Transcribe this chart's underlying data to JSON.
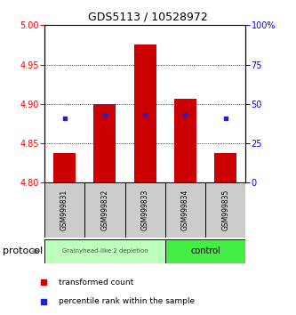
{
  "title": "GDS5113 / 10528972",
  "samples": [
    "GSM999831",
    "GSM999832",
    "GSM999833",
    "GSM999834",
    "GSM999835"
  ],
  "bar_bottom": 4.8,
  "bar_tops": [
    4.838,
    4.9,
    4.975,
    4.907,
    4.838
  ],
  "percentile_values": [
    4.882,
    4.886,
    4.886,
    4.886,
    4.882
  ],
  "ylim": [
    4.8,
    5.0
  ],
  "yticks_left": [
    4.8,
    4.85,
    4.9,
    4.95,
    5.0
  ],
  "yticks_right": [
    0,
    25,
    50,
    75,
    100
  ],
  "bar_color": "#cc0000",
  "blue_color": "#2222cc",
  "group1_label": "Grainyhead-like 2 depletion",
  "group2_label": "control",
  "group1_color": "#bbffbb",
  "group2_color": "#44ee44",
  "protocol_label": "protocol",
  "legend_red_label": "transformed count",
  "legend_blue_label": "percentile rank within the sample",
  "bar_width": 0.55,
  "title_fontsize": 9,
  "tick_fontsize": 7,
  "label_fontsize": 6
}
